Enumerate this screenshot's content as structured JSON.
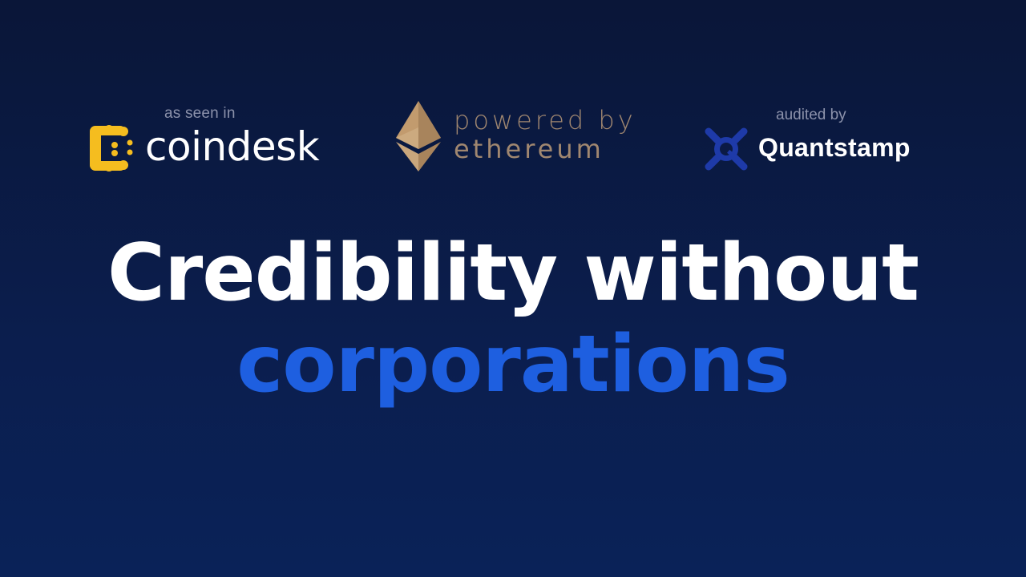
{
  "badges": {
    "coindesk": {
      "caption": "as seen in",
      "name": "coindesk",
      "icon": "coindesk-logo-icon",
      "color": "#f5bd1f"
    },
    "ethereum": {
      "line1": "powered by",
      "line2": "ethereum",
      "icon": "ethereum-diamond-icon",
      "color": "#c29b6e"
    },
    "quantstamp": {
      "caption": "audited by",
      "name": "Quantstamp",
      "icon": "quantstamp-logo-icon",
      "color": "#1e3aa8"
    }
  },
  "headline": {
    "line1": "Credibility without",
    "line2": "corporations",
    "accent_color": "#1e5fe0"
  }
}
